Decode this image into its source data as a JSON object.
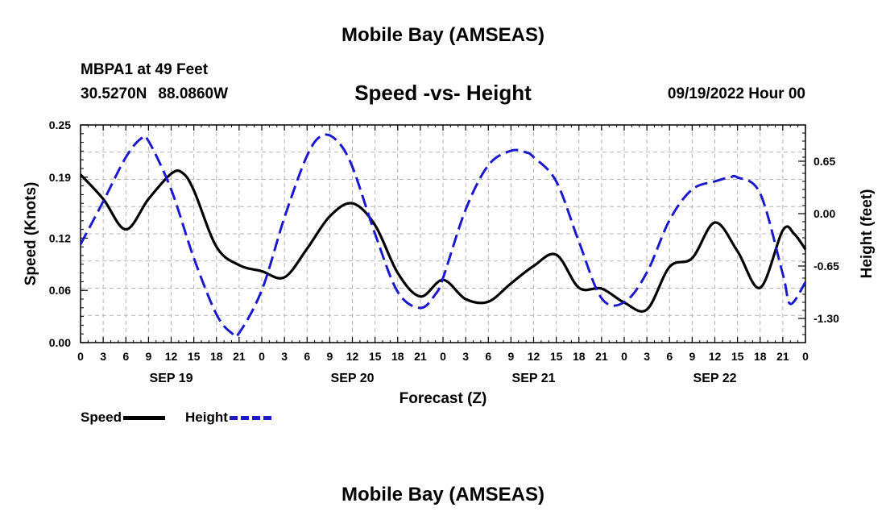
{
  "header": {
    "title": "Mobile Bay (AMSEAS)",
    "station": "MBPA1 at 49 Feet",
    "lat": "30.5270N",
    "lon": "88.0860W",
    "subtitle": "Speed -vs- Height",
    "datetime": "09/19/2022 Hour 00"
  },
  "footer": {
    "title": "Mobile Bay (AMSEAS)"
  },
  "legend": {
    "speed": "Speed",
    "height": "Height"
  },
  "colors": {
    "speed": "#000000",
    "height": "#1a1acc",
    "grid": "#b4b4b4"
  },
  "chart_data": {
    "type": "line",
    "title": "Speed -vs- Height",
    "xlabel": "Forecast (Z)",
    "ylabel": "Speed (Knots)",
    "y2label": "Height (feet)",
    "x_range": [
      0,
      96
    ],
    "x_tick_labels": [
      "0",
      "3",
      "6",
      "9",
      "12",
      "15",
      "18",
      "21",
      "0",
      "3",
      "6",
      "9",
      "12",
      "15",
      "18",
      "21",
      "0",
      "3",
      "6",
      "9",
      "12",
      "15",
      "18",
      "21",
      "0",
      "3",
      "6",
      "9",
      "12",
      "15",
      "18",
      "21",
      "0"
    ],
    "date_labels": [
      {
        "hour": 12,
        "label": "SEP 19"
      },
      {
        "hour": 36,
        "label": "SEP 20"
      },
      {
        "hour": 60,
        "label": "SEP 21"
      },
      {
        "hour": 84,
        "label": "SEP 22"
      }
    ],
    "ylim": [
      0,
      0.25
    ],
    "yticks": [
      0.0,
      0.06,
      0.12,
      0.19,
      0.25
    ],
    "ytick_labels": [
      "0.00",
      "0.06",
      "0.12",
      "0.19",
      "0.25"
    ],
    "y2lim": [
      -1.6,
      1.1
    ],
    "y2ticks": [
      0.65,
      0.0,
      -0.65,
      -1.3
    ],
    "y2tick_labels": [
      "0.65",
      "0.00",
      "-0.65",
      "-1.30"
    ],
    "grid": true,
    "series": [
      {
        "name": "Speed",
        "axis": "left",
        "style": "solid",
        "x": [
          0,
          3,
          6,
          9,
          12,
          13.5,
          15,
          18,
          21,
          24,
          27,
          30,
          33,
          36,
          39,
          42,
          45,
          48,
          51,
          54,
          57,
          60,
          63,
          66,
          69,
          72,
          75,
          78,
          81,
          84,
          87,
          90,
          93,
          94.5,
          96
        ],
        "values": [
          0.193,
          0.165,
          0.13,
          0.165,
          0.194,
          0.195,
          0.175,
          0.11,
          0.089,
          0.082,
          0.075,
          0.108,
          0.145,
          0.16,
          0.135,
          0.08,
          0.053,
          0.072,
          0.05,
          0.047,
          0.068,
          0.088,
          0.101,
          0.063,
          0.062,
          0.046,
          0.038,
          0.087,
          0.097,
          0.138,
          0.105,
          0.063,
          0.129,
          0.125,
          0.107
        ]
      },
      {
        "name": "Height",
        "axis": "right",
        "style": "dashed",
        "x": [
          0,
          3,
          6,
          8,
          9,
          12,
          15,
          18,
          20,
          21,
          24,
          27,
          30,
          32,
          34,
          36,
          39,
          42,
          45,
          47,
          48,
          51,
          54,
          57,
          59,
          60,
          63,
          66,
          69,
          72,
          75,
          78,
          81,
          84,
          86,
          87,
          90,
          93,
          94,
          96
        ],
        "values": [
          -0.38,
          0.15,
          0.7,
          0.93,
          0.9,
          0.3,
          -0.55,
          -1.25,
          -1.48,
          -1.48,
          -0.95,
          -0.05,
          0.72,
          0.97,
          0.9,
          0.58,
          -0.25,
          -0.97,
          -1.17,
          -1.0,
          -0.8,
          0.05,
          0.6,
          0.78,
          0.76,
          0.7,
          0.4,
          -0.35,
          -1.05,
          -1.1,
          -0.73,
          -0.08,
          0.3,
          0.4,
          0.45,
          0.45,
          0.25,
          -0.75,
          -1.12,
          -0.85
        ]
      }
    ]
  }
}
